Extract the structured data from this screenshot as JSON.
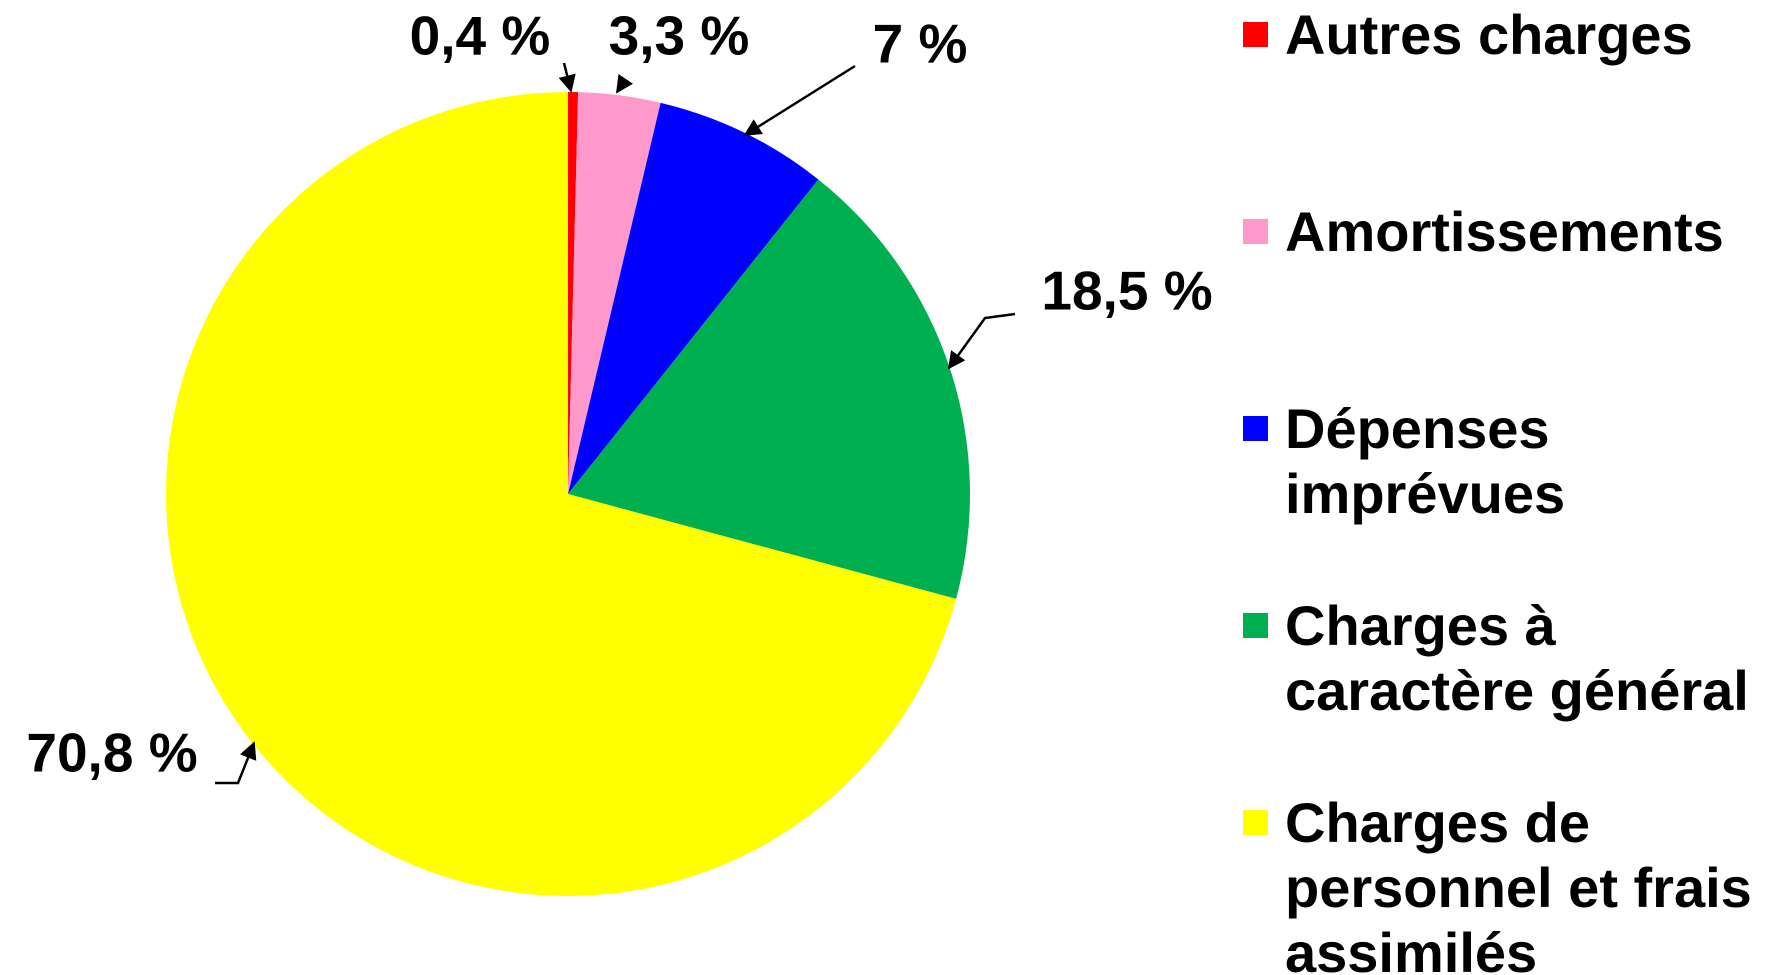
{
  "chart_data": {
    "type": "pie",
    "categories": [
      "Autres charges",
      "Amortissements",
      "Dépenses imprévues",
      "Charges à caractère général",
      "Charges de personnel et frais assimilés"
    ],
    "values": [
      0.4,
      3.3,
      7,
      18.5,
      70.8
    ],
    "value_labels": [
      "0,4 %",
      "3,3 %",
      "7 %",
      "18,5 %",
      "70,8 %"
    ],
    "colors": [
      "#ff0000",
      "#ff99cc",
      "#0000ff",
      "#00b050",
      "#ffff00"
    ],
    "legend": "right"
  }
}
